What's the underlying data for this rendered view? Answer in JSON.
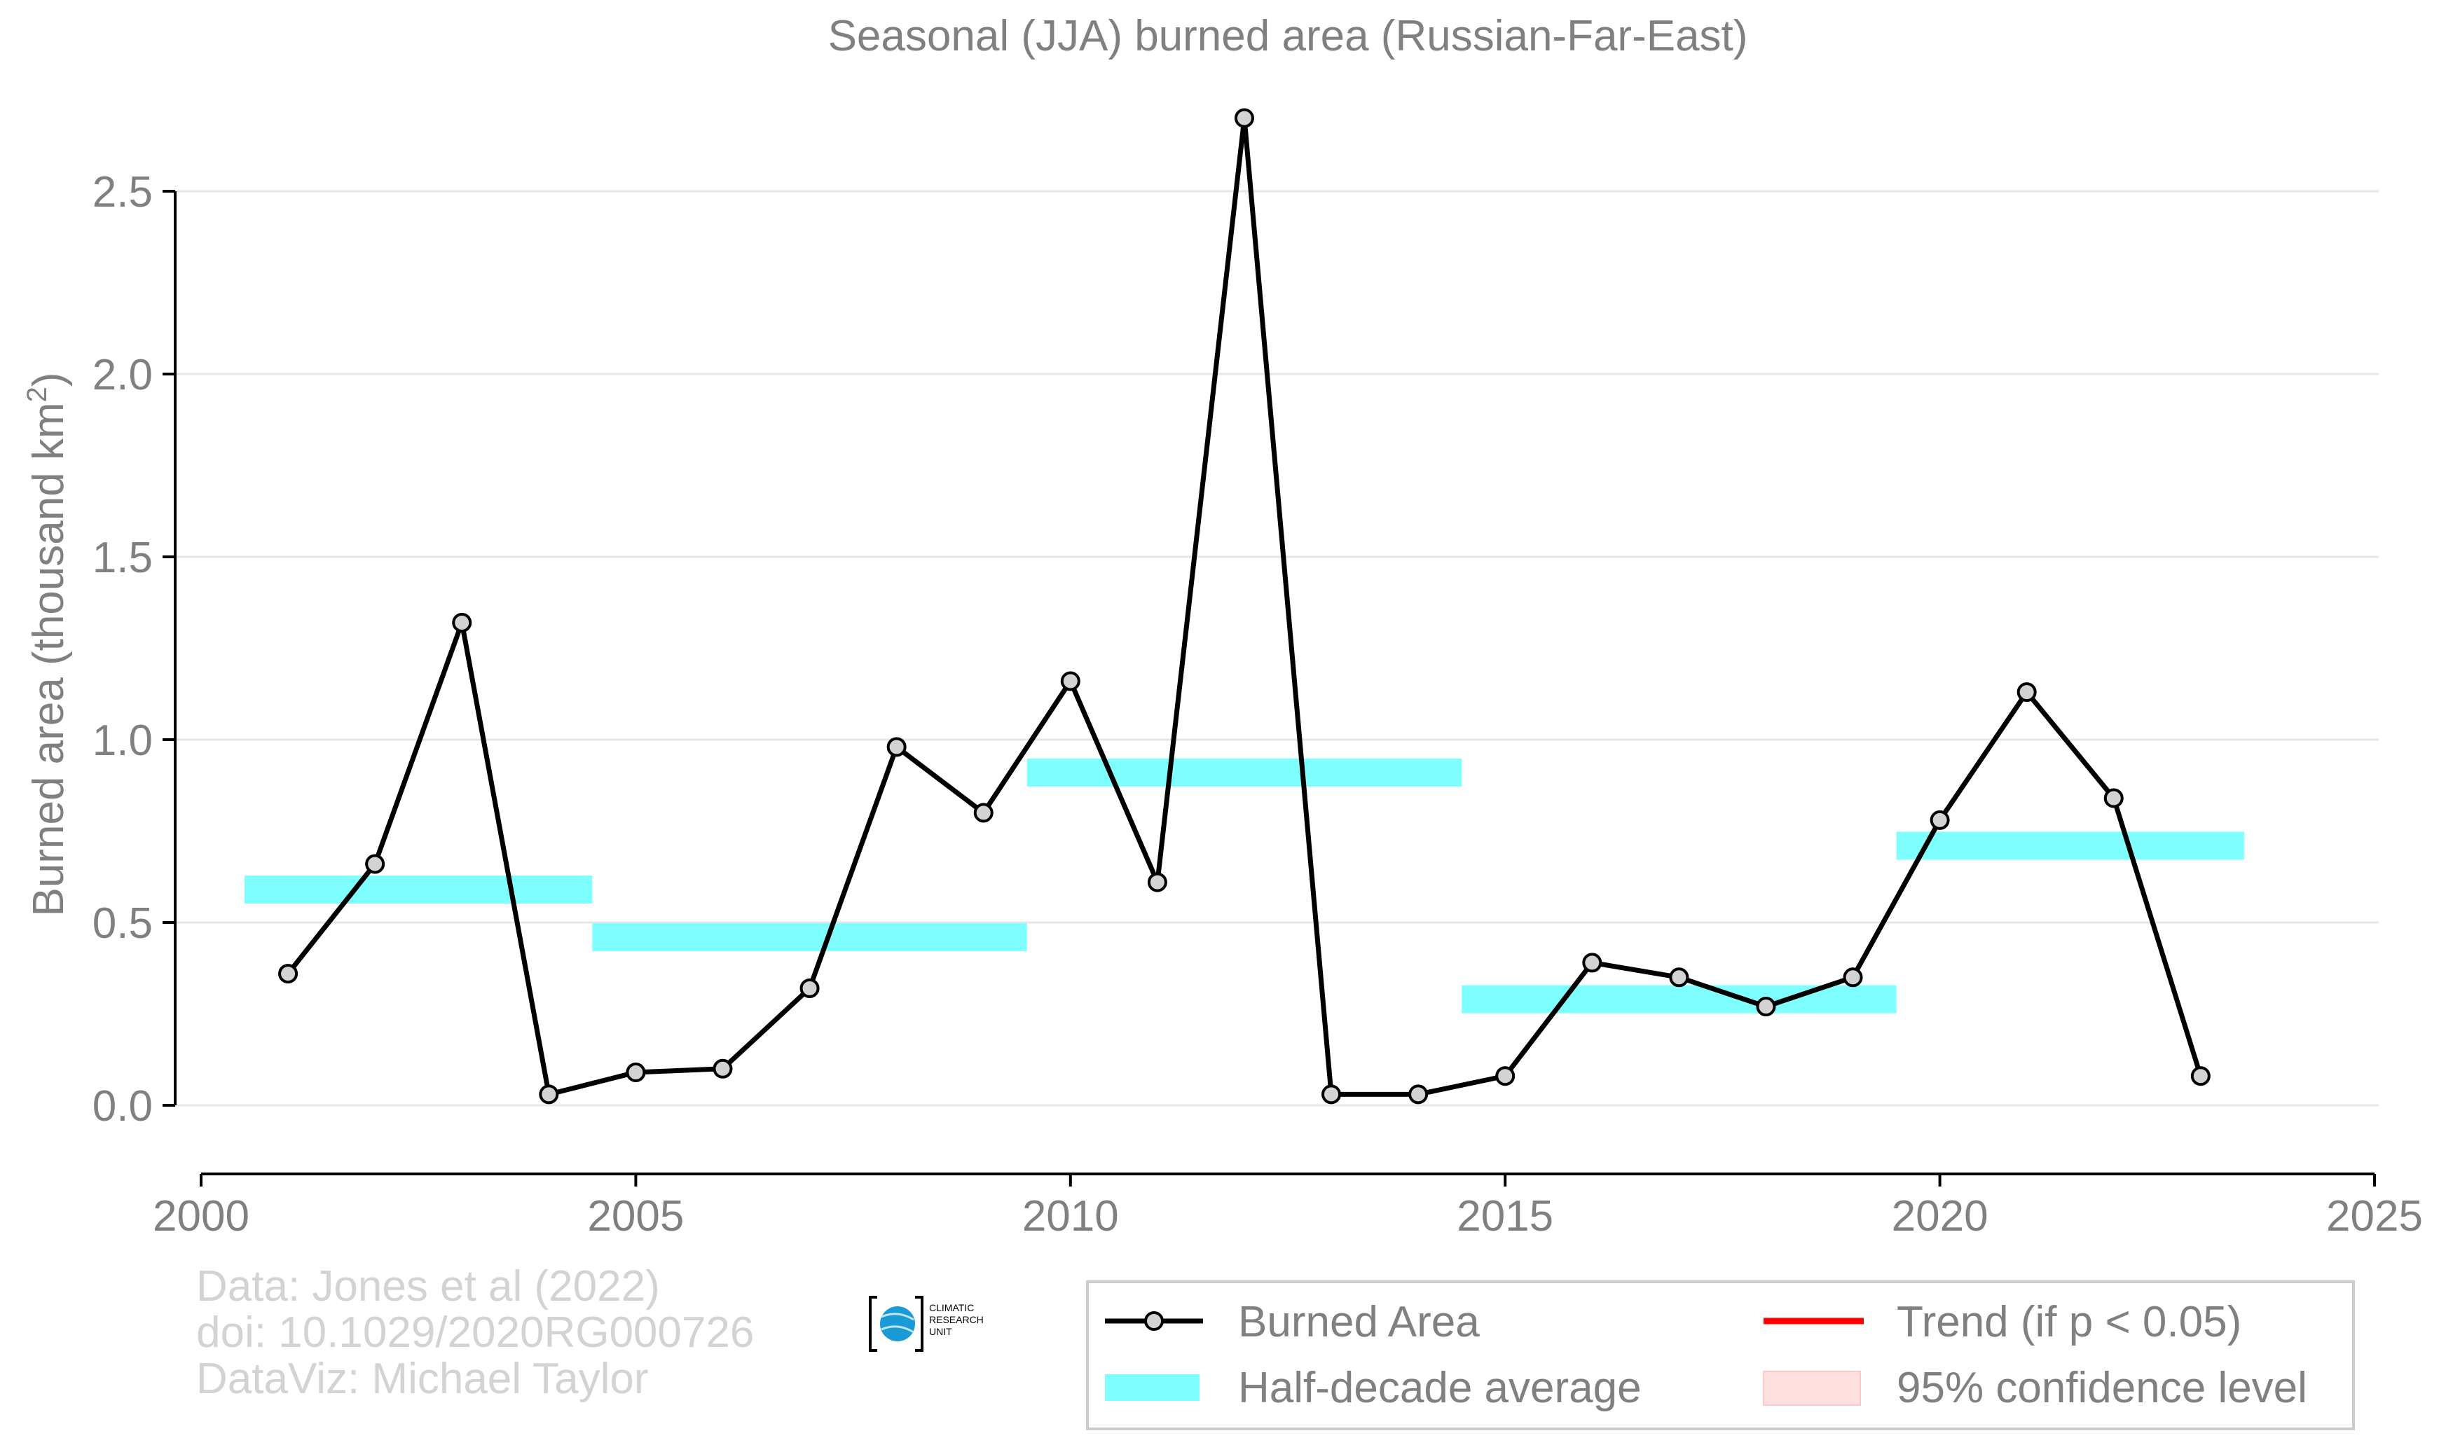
{
  "chart_data": {
    "type": "line",
    "title": "Seasonal (JJA) burned area (Russian-Far-East)",
    "xlabel": "",
    "ylabel_main": "Burned area (thousand km",
    "ylabel_sup": "2",
    "ylabel_close": ")",
    "xlim": [
      2000,
      2025
    ],
    "ylim": [
      -0.12,
      2.7
    ],
    "x_ticks": [
      2000,
      2005,
      2010,
      2015,
      2020,
      2025
    ],
    "y_ticks": [
      0.0,
      0.5,
      1.0,
      1.5,
      2.0,
      2.5
    ],
    "y_tick_labels": [
      "0.0",
      "0.5",
      "1.0",
      "1.5",
      "2.0",
      "2.5"
    ],
    "grid": "horizontal",
    "series": [
      {
        "name": "Burned Area",
        "color": "#000000",
        "marker_fill": "#d3d3d3",
        "x": [
          2001,
          2002,
          2003,
          2004,
          2005,
          2006,
          2007,
          2008,
          2009,
          2010,
          2011,
          2012,
          2013,
          2014,
          2015,
          2016,
          2017,
          2018,
          2019,
          2020,
          2021,
          2022,
          2023
        ],
        "y": [
          0.36,
          0.66,
          1.32,
          0.03,
          0.09,
          0.1,
          0.32,
          0.98,
          0.8,
          1.16,
          0.61,
          2.7,
          0.03,
          0.03,
          0.08,
          0.39,
          0.35,
          0.27,
          0.35,
          0.78,
          1.13,
          0.84,
          0.08
        ]
      }
    ],
    "half_decade_average": {
      "name": "Half-decade average",
      "color": "#7fffff",
      "segments": [
        {
          "x0": 2000.5,
          "x1": 2004.5,
          "y": 0.59
        },
        {
          "x0": 2004.5,
          "x1": 2009.5,
          "y": 0.46
        },
        {
          "x0": 2009.5,
          "x1": 2014.5,
          "y": 0.91
        },
        {
          "x0": 2014.5,
          "x1": 2019.5,
          "y": 0.29
        },
        {
          "x0": 2019.5,
          "x1": 2023.5,
          "y": 0.71
        }
      ]
    },
    "legend": {
      "placement": "bottom-right",
      "items": [
        {
          "label": "Burned Area",
          "kind": "line-marker",
          "color": "#000000"
        },
        {
          "label": "Trend (if p < 0.05)",
          "kind": "line",
          "color": "#ff0000"
        },
        {
          "label": "Half-decade average",
          "kind": "band",
          "color": "#7fffff"
        },
        {
          "label": "95% confidence level",
          "kind": "band",
          "color": "#ffe0e0"
        }
      ]
    },
    "credits": [
      "Data: Jones et al (2022)",
      "doi: 10.1029/2020RG000726",
      "DataViz: Michael Taylor"
    ],
    "logo_text": [
      "CLIMATIC",
      "RESEARCH",
      "UNIT"
    ],
    "logo_color": "#1a9ad6"
  }
}
